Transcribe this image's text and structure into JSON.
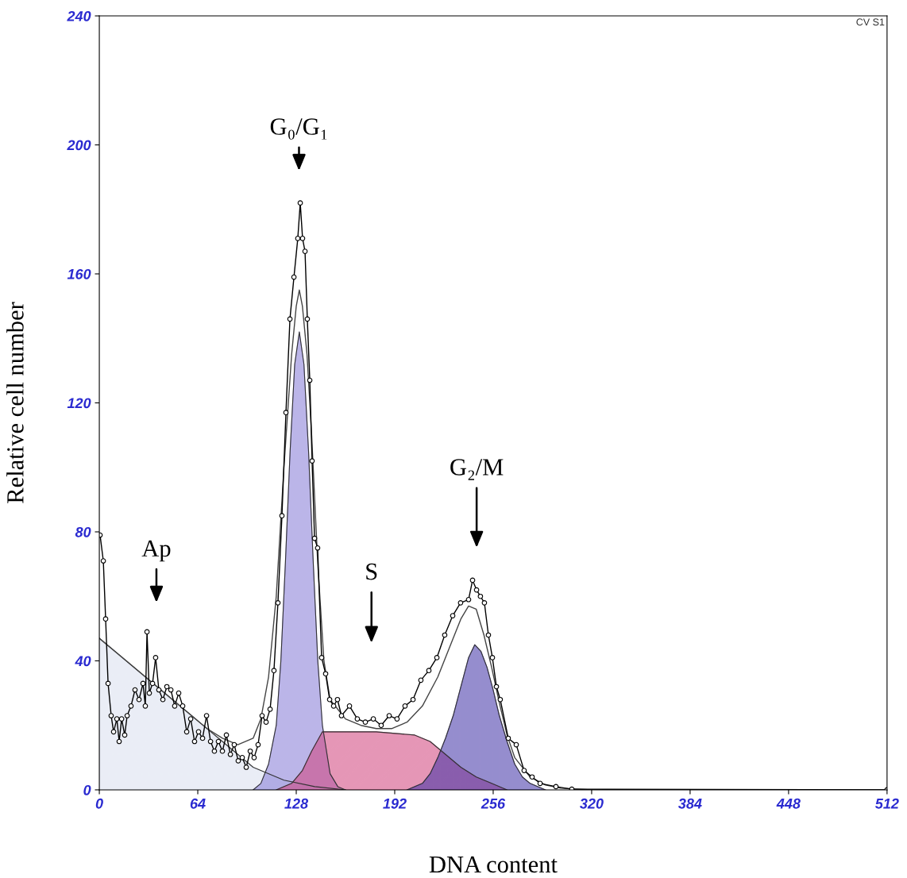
{
  "chart_data": {
    "type": "line",
    "xlabel": "DNA content",
    "ylabel": "Relative cell number",
    "xlim": [
      0,
      512
    ],
    "xticks": [
      0,
      64,
      128,
      192,
      256,
      320,
      384,
      448,
      512
    ],
    "ylim": [
      0,
      240
    ],
    "yticks": [
      0,
      40,
      80,
      120,
      160,
      200,
      240
    ],
    "grid": false,
    "legend": false,
    "series": [
      {
        "type": "area",
        "color": "#d9dfee",
        "x": [
          0,
          20,
          40,
          60,
          80,
          100,
          120,
          140,
          160
        ],
        "values": [
          47,
          39,
          31,
          23,
          15,
          7,
          3,
          1,
          0
        ]
      },
      {
        "type": "area",
        "color": "#8378d6",
        "x": [
          100,
          105,
          110,
          115,
          118,
          121,
          124,
          127,
          130,
          133,
          136,
          139,
          142,
          145,
          150,
          155,
          160
        ],
        "values": [
          0,
          2,
          8,
          20,
          40,
          71,
          105,
          132,
          142,
          132,
          105,
          71,
          40,
          20,
          5,
          1,
          0
        ]
      },
      {
        "type": "area",
        "color": "#d0407a",
        "x": [
          115,
          125,
          132,
          138,
          145,
          180,
          205,
          215,
          225,
          235,
          245,
          255,
          265
        ],
        "values": [
          0,
          2,
          6,
          12,
          18,
          18,
          17,
          15,
          11,
          7,
          4,
          2,
          0
        ]
      },
      {
        "type": "area",
        "color": "#3e2fa5",
        "x": [
          200,
          210,
          215,
          220,
          225,
          230,
          235,
          240,
          244,
          248,
          252,
          256,
          260,
          265,
          270,
          275,
          280,
          290
        ],
        "values": [
          0,
          2,
          5,
          10,
          16,
          23,
          32,
          41,
          45,
          43,
          38,
          31,
          23,
          15,
          8,
          4,
          2,
          0
        ]
      },
      {
        "color": "#444444",
        "marker": "none",
        "x": [
          0,
          10,
          20,
          30,
          40,
          50,
          60,
          70,
          80,
          90,
          100,
          105,
          110,
          115,
          120,
          125,
          128,
          130,
          132,
          135,
          138,
          142,
          146,
          150,
          160,
          170,
          180,
          190,
          200,
          210,
          220,
          230,
          235,
          240,
          245,
          250,
          255,
          260,
          265,
          270,
          280,
          290,
          300,
          320,
          512
        ],
        "values": [
          47,
          43,
          39,
          35,
          31,
          27,
          23,
          19,
          16,
          14,
          16,
          22,
          35,
          60,
          100,
          135,
          150,
          155,
          150,
          135,
          110,
          70,
          40,
          28,
          22,
          20,
          19,
          19,
          21,
          26,
          35,
          47,
          53,
          57,
          56,
          48,
          38,
          27,
          17,
          10,
          4,
          1.5,
          0.5,
          0,
          0
        ]
      },
      {
        "color": "#000000",
        "marker": "circle",
        "x": [
          0.5,
          2.6,
          4.1,
          5.7,
          7.7,
          9.3,
          11.4,
          12.9,
          14.5,
          16.5,
          18.1,
          20.6,
          23.2,
          25.8,
          28.4,
          29.9,
          31.0,
          32.5,
          34.6,
          36.6,
          38.7,
          41.3,
          43.9,
          46.5,
          49.0,
          51.6,
          54.2,
          56.8,
          59.4,
          61.9,
          64.5,
          67.1,
          69.7,
          72.3,
          74.8,
          77.4,
          80.0,
          82.6,
          85.2,
          87.7,
          90.3,
          92.9,
          95.5,
          98.1,
          100.6,
          103.2,
          105.8,
          108.4,
          111.0,
          113.5,
          116.1,
          118.7,
          121.3,
          123.9,
          126.5,
          129.0,
          130.6,
          132.1,
          133.7,
          135.2,
          136.8,
          138.3,
          139.9,
          141.9,
          144.5,
          147.1,
          149.7,
          152.3,
          154.8,
          157.4,
          162.6,
          167.7,
          172.9,
          178.1,
          183.2,
          188.4,
          193.5,
          198.7,
          203.9,
          209.0,
          214.2,
          219.4,
          224.5,
          229.7,
          234.8,
          240.0,
          242.6,
          245.2,
          247.7,
          250.3,
          252.9,
          255.5,
          258.1,
          260.6,
          265.8,
          271.0,
          276.1,
          281.3,
          286.5,
          296.8,
          307.1,
          512
        ],
        "values": [
          79,
          71,
          53,
          33,
          23,
          18,
          22,
          15,
          22,
          17,
          23,
          26,
          31,
          28,
          33,
          26,
          49,
          30,
          33,
          41,
          31,
          28,
          32,
          31,
          26,
          30,
          26,
          18,
          22,
          15,
          18,
          16,
          23,
          15,
          12,
          15,
          12,
          17,
          11,
          14,
          9,
          10,
          7,
          12,
          10,
          14,
          23,
          21,
          25,
          37,
          58,
          85,
          117,
          146,
          159,
          171,
          182,
          171,
          167,
          146,
          127,
          102,
          78,
          75,
          41,
          36,
          28,
          26,
          28,
          23,
          26,
          22,
          21,
          22,
          20,
          23,
          22,
          26,
          28,
          34,
          37,
          41,
          48,
          54,
          58,
          59,
          65,
          62,
          60,
          58,
          48,
          41,
          32,
          28,
          16,
          14,
          6,
          4,
          2,
          1,
          0.2,
          0
        ]
      }
    ],
    "annotations": [
      "G₀/G₁",
      "Ap",
      "S",
      "G₂/M",
      "CV S1"
    ]
  }
}
